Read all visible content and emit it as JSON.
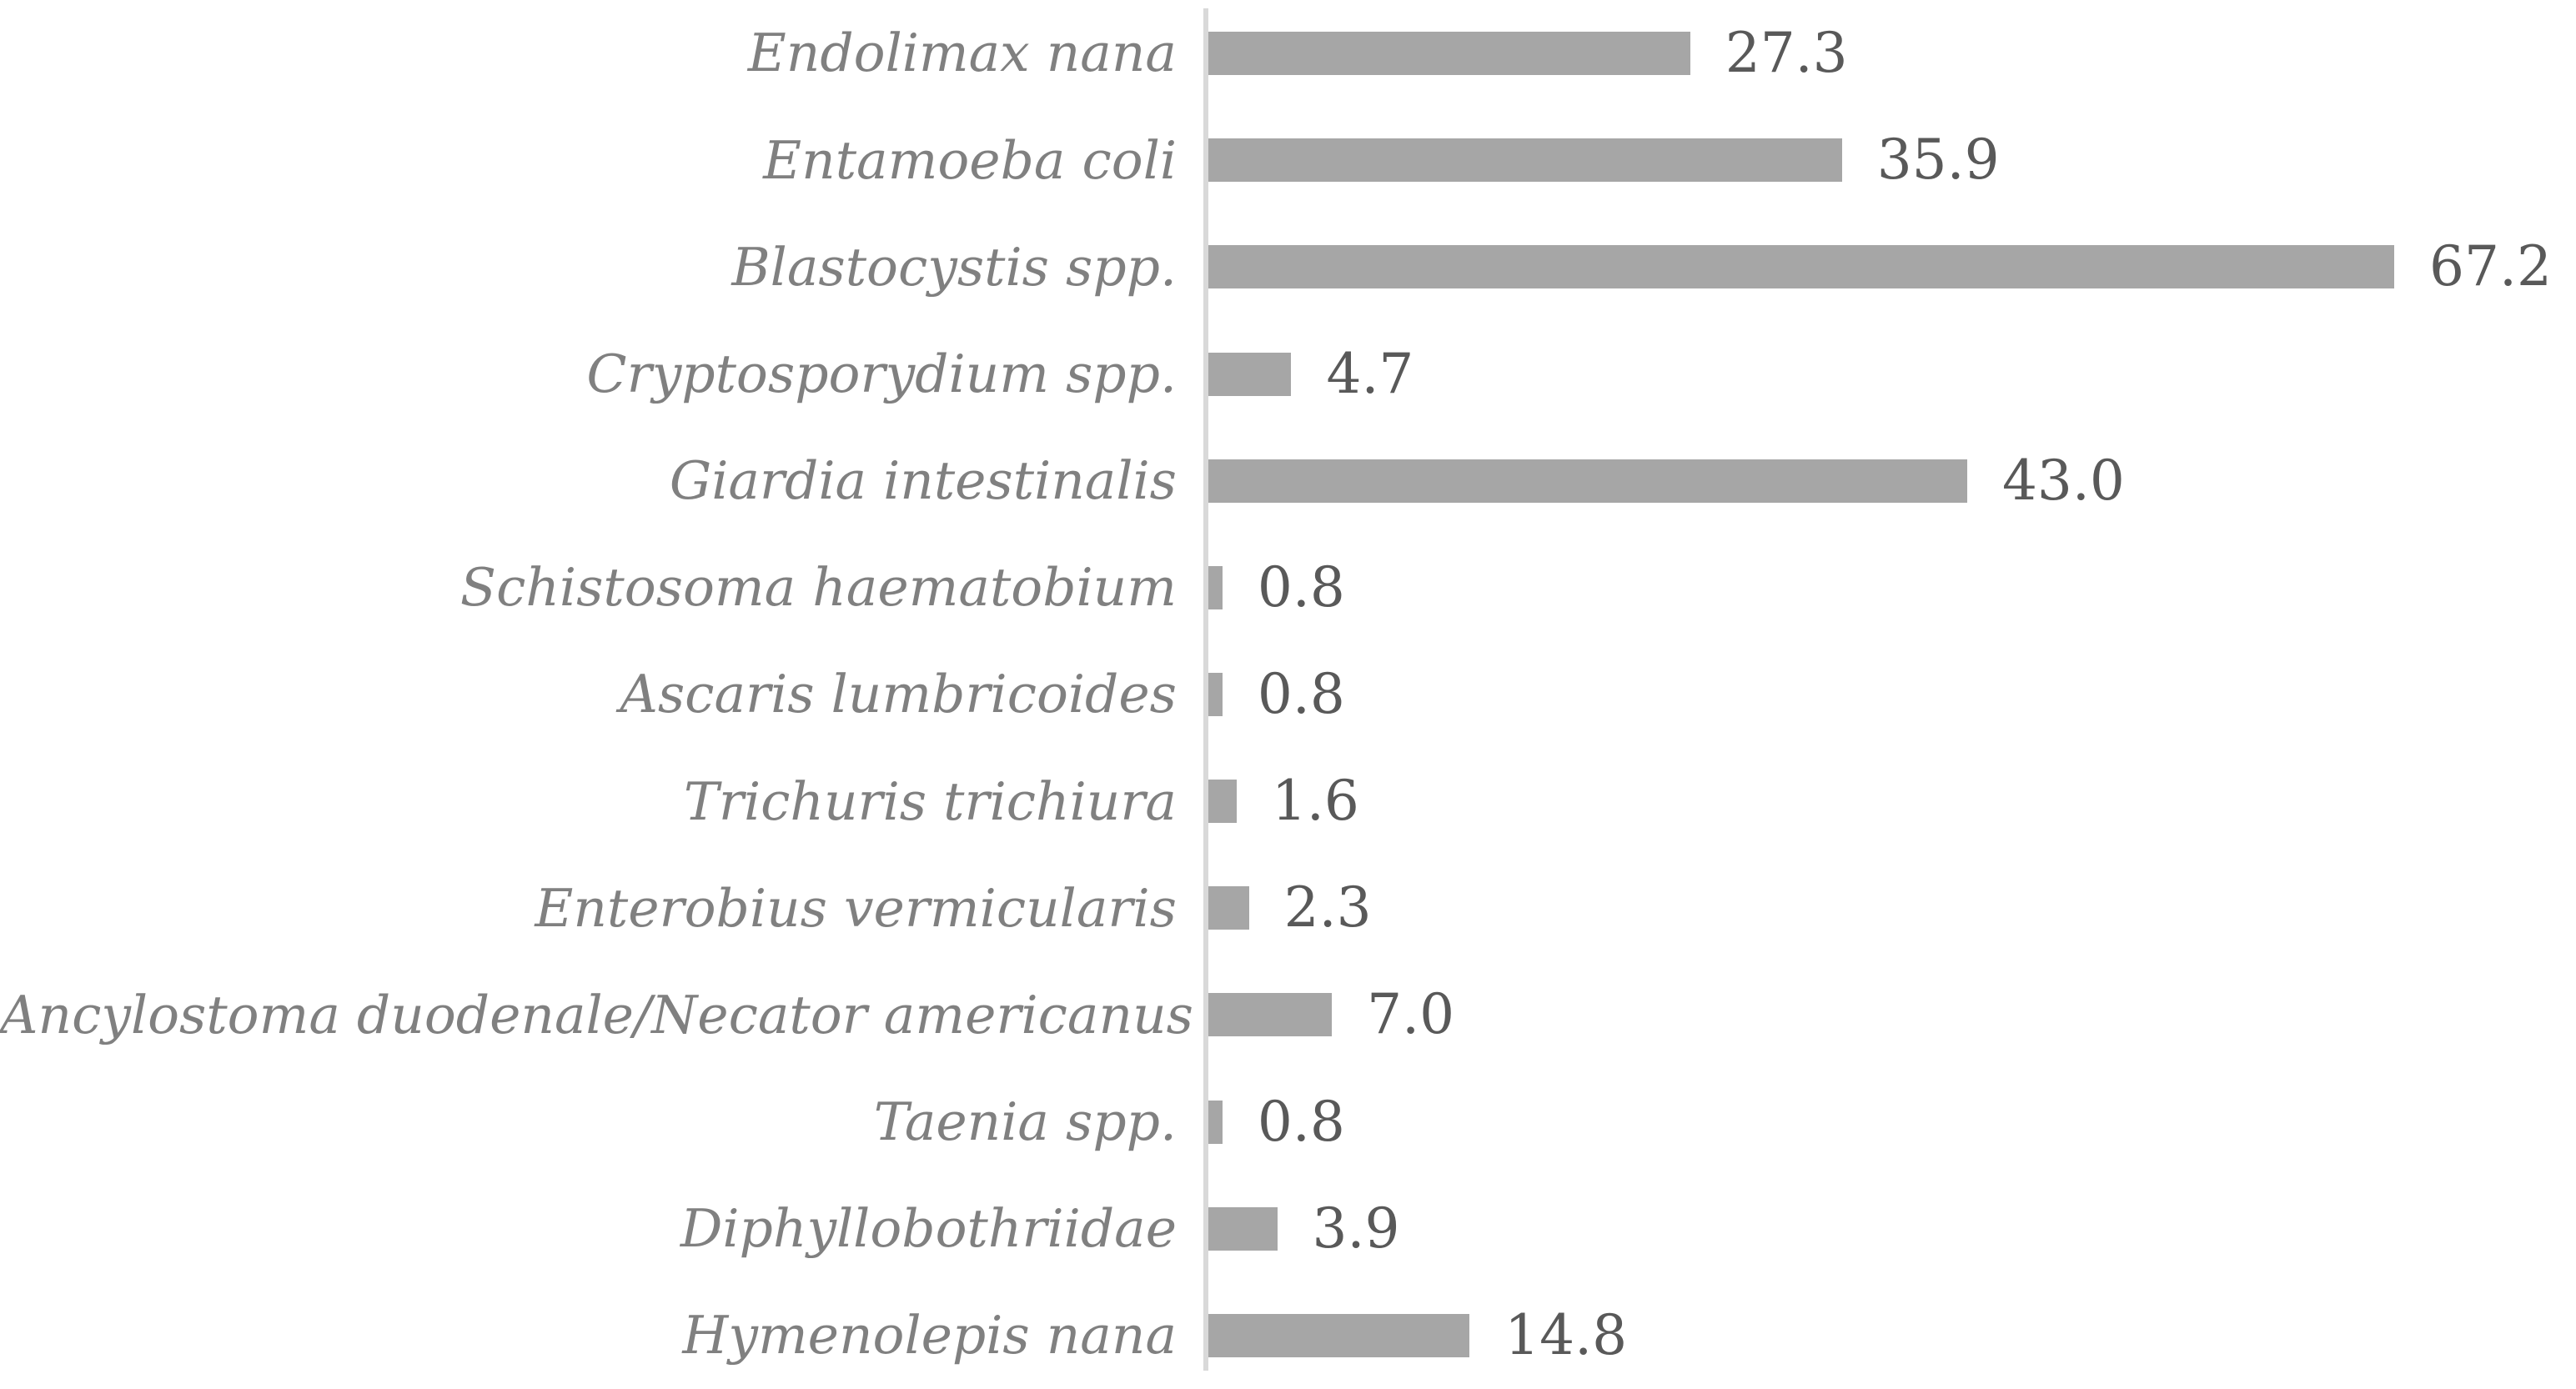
{
  "figure": {
    "background": "#ffffff"
  },
  "chart_data": {
    "type": "bar",
    "orientation": "horizontal",
    "title": "",
    "xlabel": "",
    "ylabel": "",
    "xlim": [
      0,
      77.5
    ],
    "grid": false,
    "legend": null,
    "bar_color": "#a6a6a6",
    "axis_line_color": "#d9d9d9",
    "category_label_color": "#808080",
    "value_label_color": "#595959",
    "categories": [
      "Endolimax nana",
      "Entamoeba coli",
      "Blastocystis spp.",
      "Cryptosporydium spp.",
      "Giardia intestinalis",
      "Schistosoma haematobium",
      "Ascaris lumbricoides",
      "Trichuris trichiura",
      "Enterobius vermicularis",
      "Ancylostoma duodenale/Necator americanus",
      "Taenia spp.",
      "Diphyllobothriidae",
      "Hymenolepis nana"
    ],
    "values": [
      27.3,
      35.9,
      67.2,
      4.7,
      43.0,
      0.8,
      0.8,
      1.6,
      2.3,
      7.0,
      0.8,
      3.9,
      14.8
    ],
    "value_labels": [
      "27.3",
      "35.9",
      "67.2",
      "4.7",
      "43.0",
      "0.8",
      "0.8",
      "1.6",
      "2.3",
      "7.0",
      "0.8",
      "3.9",
      "14.8"
    ]
  }
}
